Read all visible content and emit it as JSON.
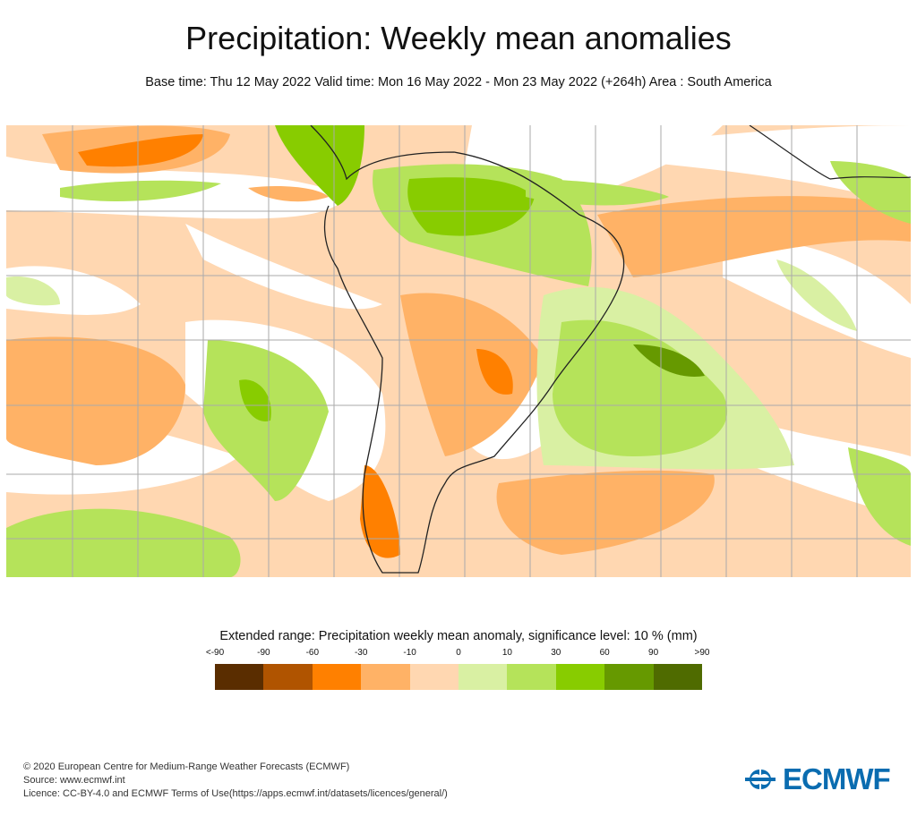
{
  "header": {
    "title": "Precipitation: Weekly mean anomalies",
    "subtitle": "Base time: Thu 12 May 2022 Valid time: Mon 16 May 2022 - Mon 23 May 2022 (+264h) Area : South America"
  },
  "legend": {
    "title": "Extended range: Precipitation weekly mean anomaly, significance level: 10 % (mm)",
    "ticks": [
      "<-90",
      "-90",
      "-60",
      "-30",
      "-10",
      "0",
      "10",
      "30",
      "60",
      "90",
      ">90"
    ],
    "colors": [
      "#5a2d00",
      "#b05400",
      "#ff8000",
      "#ffb266",
      "#ffd7b1",
      "#d9f0a3",
      "#b5e35a",
      "#88cc00",
      "#669900",
      "#4f6b00"
    ]
  },
  "footer": {
    "line1": "© 2020 European Centre for Medium-Range Weather Forecasts (ECMWF)",
    "line2": "Source: www.ecmwf.int",
    "line3": "Licence: CC-BY-4.0 and ECMWF Terms of Use(https://apps.ecmwf.int/datasets/licences/general/)"
  },
  "logo": {
    "text": "ECMWF",
    "color": "#0a6cb0"
  }
}
